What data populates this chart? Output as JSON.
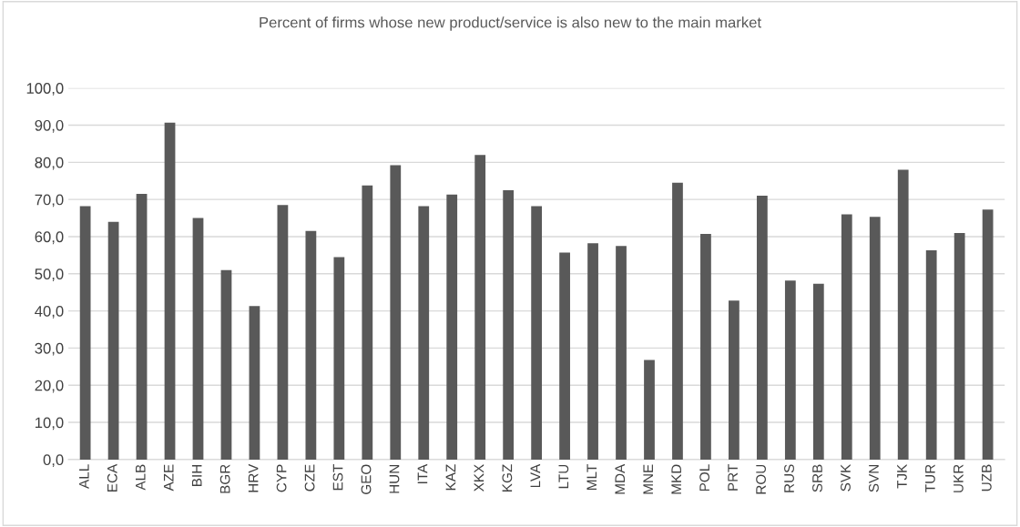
{
  "chart_data": {
    "type": "bar",
    "title": "Percent of firms whose new product/service is also new to the main market",
    "categories": [
      "ALL",
      "ECA",
      "ALB",
      "AZE",
      "BIH",
      "BGR",
      "HRV",
      "CYP",
      "CZE",
      "EST",
      "GEO",
      "HUN",
      "ITA",
      "KAZ",
      "XKX",
      "KGZ",
      "LVA",
      "LTU",
      "MLT",
      "MDA",
      "MNE",
      "MKD",
      "POL",
      "PRT",
      "ROU",
      "RUS",
      "SRB",
      "SVK",
      "SVN",
      "TJK",
      "TUR",
      "UKR",
      "UZB"
    ],
    "values": [
      68.2,
      64.0,
      71.5,
      90.7,
      65.0,
      51.0,
      41.3,
      68.5,
      61.5,
      54.5,
      73.8,
      79.2,
      68.2,
      71.3,
      82.0,
      72.5,
      68.2,
      55.7,
      58.2,
      57.5,
      26.8,
      74.5,
      60.7,
      42.8,
      71.0,
      48.2,
      47.3,
      66.0,
      65.3,
      78.0,
      56.3,
      61.0,
      67.3
    ],
    "color": "#595959",
    "ylim": [
      0,
      100
    ],
    "yticks": [
      {
        "value": 0,
        "label": "0,0"
      },
      {
        "value": 10,
        "label": "10,0"
      },
      {
        "value": 20,
        "label": "20,0"
      },
      {
        "value": 30,
        "label": "30,0"
      },
      {
        "value": 40,
        "label": "40,0"
      },
      {
        "value": 50,
        "label": "50,0"
      },
      {
        "value": 60,
        "label": "60,0"
      },
      {
        "value": 70,
        "label": "70,0"
      },
      {
        "value": 80,
        "label": "80,0"
      },
      {
        "value": 90,
        "label": "90,0"
      },
      {
        "value": 100,
        "label": "100,0"
      }
    ],
    "grid": "y",
    "legend": false
  }
}
